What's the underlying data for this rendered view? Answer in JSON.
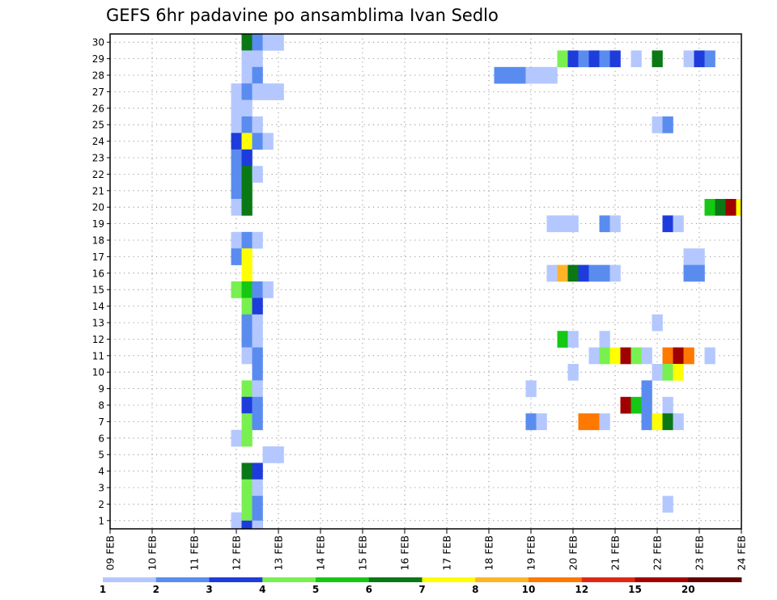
{
  "chart_data": {
    "type": "heatmap",
    "title": "GEFS 6hr padavine po ansamblima Ivan Sedlo",
    "x_categories": [
      "09 FEB",
      "10 FEB",
      "11 FEB",
      "12 FEB",
      "13 FEB",
      "14 FEB",
      "15 FEB",
      "16 FEB",
      "17 FEB",
      "18 FEB",
      "19 FEB",
      "20 FEB",
      "21 FEB",
      "22 FEB",
      "23 FEB",
      "24 FEB"
    ],
    "y_categories": [
      "1",
      "2",
      "3",
      "4",
      "5",
      "6",
      "7",
      "8",
      "9",
      "10",
      "11",
      "12",
      "13",
      "14",
      "15",
      "16",
      "17",
      "18",
      "19",
      "20",
      "21",
      "22",
      "23",
      "24",
      "25",
      "26",
      "27",
      "28",
      "29",
      "30"
    ],
    "xlim": [
      0,
      60
    ],
    "ylim": [
      0.5,
      30.5
    ],
    "grid": true,
    "steps_per_day": 4,
    "colorbar": {
      "labels": [
        "1",
        "2",
        "3",
        "4",
        "5",
        "6",
        "7",
        "8",
        "10",
        "12",
        "15",
        "20"
      ],
      "colors": [
        "#b4c8ff",
        "#5a8cf0",
        "#1e3cdc",
        "#78f050",
        "#14c814",
        "#0a7814",
        "#ffff00",
        "#ffb428",
        "#ff7800",
        "#e12814",
        "#a00000",
        "#640000"
      ]
    },
    "cells": [
      [
        13,
        30,
        6
      ],
      [
        14,
        30,
        2
      ],
      [
        15,
        30,
        1
      ],
      [
        16,
        30,
        1
      ],
      [
        13,
        29,
        1
      ],
      [
        14,
        29,
        1
      ],
      [
        43,
        29,
        4
      ],
      [
        44,
        29,
        3
      ],
      [
        45,
        29,
        2
      ],
      [
        46,
        29,
        3
      ],
      [
        47,
        29,
        2
      ],
      [
        48,
        29,
        3
      ],
      [
        50,
        29,
        1
      ],
      [
        52,
        29,
        6
      ],
      [
        55,
        29,
        1
      ],
      [
        56,
        29,
        3
      ],
      [
        57,
        29,
        2
      ],
      [
        13,
        28,
        1
      ],
      [
        14,
        28,
        2
      ],
      [
        37,
        28,
        2
      ],
      [
        38,
        28,
        2
      ],
      [
        39,
        28,
        2
      ],
      [
        40,
        28,
        1
      ],
      [
        41,
        28,
        1
      ],
      [
        42,
        28,
        1
      ],
      [
        12,
        27,
        1
      ],
      [
        13,
        27,
        2
      ],
      [
        14,
        27,
        1
      ],
      [
        15,
        27,
        1
      ],
      [
        16,
        27,
        1
      ],
      [
        12,
        26,
        1
      ],
      [
        13,
        26,
        1
      ],
      [
        12,
        25,
        1
      ],
      [
        13,
        25,
        2
      ],
      [
        14,
        25,
        1
      ],
      [
        52,
        25,
        1
      ],
      [
        53,
        25,
        2
      ],
      [
        12,
        24,
        3
      ],
      [
        13,
        24,
        7
      ],
      [
        14,
        24,
        2
      ],
      [
        15,
        24,
        1
      ],
      [
        12,
        23,
        2
      ],
      [
        13,
        23,
        3
      ],
      [
        12,
        22,
        2
      ],
      [
        13,
        22,
        6
      ],
      [
        14,
        22,
        1
      ],
      [
        12,
        21,
        2
      ],
      [
        13,
        21,
        6
      ],
      [
        12,
        20,
        1
      ],
      [
        13,
        20,
        6
      ],
      [
        57,
        20,
        5
      ],
      [
        58,
        20,
        6
      ],
      [
        59,
        20,
        11
      ],
      [
        60,
        20,
        7
      ],
      [
        42,
        19,
        1
      ],
      [
        43,
        19,
        1
      ],
      [
        44,
        19,
        1
      ],
      [
        47,
        19,
        2
      ],
      [
        48,
        19,
        1
      ],
      [
        53,
        19,
        3
      ],
      [
        54,
        19,
        1
      ],
      [
        12,
        18,
        1
      ],
      [
        13,
        18,
        2
      ],
      [
        14,
        18,
        1
      ],
      [
        12,
        17,
        2
      ],
      [
        13,
        17,
        7
      ],
      [
        55,
        17,
        1
      ],
      [
        56,
        17,
        1
      ],
      [
        13,
        16,
        7
      ],
      [
        42,
        16,
        1
      ],
      [
        43,
        16,
        8
      ],
      [
        44,
        16,
        6
      ],
      [
        45,
        16,
        3
      ],
      [
        46,
        16,
        2
      ],
      [
        47,
        16,
        2
      ],
      [
        48,
        16,
        1
      ],
      [
        55,
        16,
        2
      ],
      [
        56,
        16,
        2
      ],
      [
        12,
        15,
        4
      ],
      [
        13,
        15,
        5
      ],
      [
        14,
        15,
        2
      ],
      [
        15,
        15,
        1
      ],
      [
        13,
        14,
        4
      ],
      [
        14,
        14,
        3
      ],
      [
        13,
        13,
        2
      ],
      [
        14,
        13,
        1
      ],
      [
        52,
        13,
        1
      ],
      [
        13,
        12,
        2
      ],
      [
        14,
        12,
        1
      ],
      [
        43,
        12,
        5
      ],
      [
        44,
        12,
        1
      ],
      [
        47,
        12,
        1
      ],
      [
        13,
        11,
        1
      ],
      [
        14,
        11,
        2
      ],
      [
        46,
        11,
        1
      ],
      [
        47,
        11,
        4
      ],
      [
        48,
        11,
        7
      ],
      [
        49,
        11,
        11
      ],
      [
        50,
        11,
        4
      ],
      [
        51,
        11,
        1
      ],
      [
        53,
        11,
        9
      ],
      [
        54,
        11,
        11
      ],
      [
        55,
        11,
        9
      ],
      [
        57,
        11,
        1
      ],
      [
        14,
        10,
        2
      ],
      [
        44,
        10,
        1
      ],
      [
        52,
        10,
        1
      ],
      [
        53,
        10,
        4
      ],
      [
        54,
        10,
        7
      ],
      [
        13,
        9,
        4
      ],
      [
        14,
        9,
        1
      ],
      [
        40,
        9,
        1
      ],
      [
        51,
        9,
        2
      ],
      [
        13,
        8,
        3
      ],
      [
        14,
        8,
        2
      ],
      [
        49,
        8,
        11
      ],
      [
        50,
        8,
        5
      ],
      [
        51,
        8,
        2
      ],
      [
        53,
        8,
        1
      ],
      [
        13,
        7,
        4
      ],
      [
        14,
        7,
        2
      ],
      [
        40,
        7,
        2
      ],
      [
        41,
        7,
        1
      ],
      [
        45,
        7,
        9
      ],
      [
        46,
        7,
        9
      ],
      [
        47,
        7,
        1
      ],
      [
        51,
        7,
        2
      ],
      [
        52,
        7,
        7
      ],
      [
        53,
        7,
        6
      ],
      [
        54,
        7,
        1
      ],
      [
        12,
        6,
        1
      ],
      [
        13,
        6,
        4
      ],
      [
        15,
        5,
        1
      ],
      [
        16,
        5,
        1
      ],
      [
        13,
        4,
        6
      ],
      [
        14,
        4,
        3
      ],
      [
        13,
        3,
        4
      ],
      [
        14,
        3,
        1
      ],
      [
        13,
        2,
        4
      ],
      [
        14,
        2,
        2
      ],
      [
        53,
        2,
        1
      ],
      [
        12,
        1,
        1
      ],
      [
        13,
        1,
        4
      ],
      [
        14,
        1,
        2
      ],
      [
        13,
        0.5,
        3
      ],
      [
        14,
        0.5,
        1
      ]
    ]
  }
}
